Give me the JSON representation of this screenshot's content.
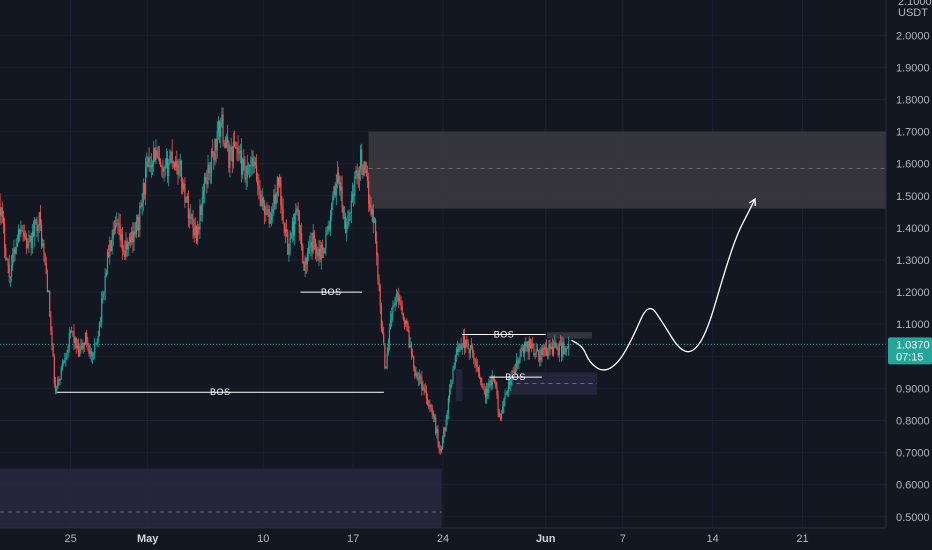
{
  "chart_data": {
    "type": "candlestick",
    "quote_currency": "USDT",
    "y_axis_top_label": "2.1000",
    "y_ticks": [
      "2.0000",
      "1.9000",
      "1.8000",
      "1.7000",
      "1.6000",
      "1.5000",
      "1.4000",
      "1.3000",
      "1.2000",
      "1.1000",
      "1.0000",
      "0.9000",
      "0.8000",
      "0.7000",
      "0.6000",
      "0.5000"
    ],
    "x_ticks": [
      {
        "label": "25",
        "bold": false,
        "day": 25
      },
      {
        "label": "May",
        "bold": true,
        "day": 31
      },
      {
        "label": "10",
        "bold": false,
        "day": 40
      },
      {
        "label": "17",
        "bold": false,
        "day": 47
      },
      {
        "label": "24",
        "bold": false,
        "day": 54
      },
      {
        "label": "Jun",
        "bold": true,
        "day": 62
      },
      {
        "label": "7",
        "bold": false,
        "day": 68
      },
      {
        "label": "14",
        "bold": false,
        "day": 75
      },
      {
        "label": "21",
        "bold": false,
        "day": 82
      }
    ],
    "day_range": [
      19.5,
      88.5
    ],
    "y_range": [
      0.465,
      2.11
    ],
    "current_price": {
      "value": "1.0370",
      "countdown": "07:15",
      "level": 1.037
    },
    "colors": {
      "up": "#26a69a",
      "down": "#ef5350",
      "background": "#131722",
      "grid": "#1c2030"
    },
    "price_path": [
      [
        19.5,
        1.5
      ],
      [
        20.3,
        1.25
      ],
      [
        21.2,
        1.42
      ],
      [
        21.8,
        1.33
      ],
      [
        22.6,
        1.44
      ],
      [
        23.3,
        1.22
      ],
      [
        23.9,
        0.88
      ],
      [
        24.6,
        1.0
      ],
      [
        25.2,
        1.08
      ],
      [
        25.7,
        1.0
      ],
      [
        26.3,
        1.06
      ],
      [
        26.8,
        0.98
      ],
      [
        27.4,
        1.12
      ],
      [
        28.0,
        1.32
      ],
      [
        28.7,
        1.4
      ],
      [
        29.3,
        1.32
      ],
      [
        29.9,
        1.38
      ],
      [
        30.4,
        1.42
      ],
      [
        31.0,
        1.58
      ],
      [
        31.6,
        1.64
      ],
      [
        32.3,
        1.55
      ],
      [
        32.9,
        1.63
      ],
      [
        33.6,
        1.58
      ],
      [
        34.3,
        1.45
      ],
      [
        34.9,
        1.38
      ],
      [
        35.6,
        1.55
      ],
      [
        36.2,
        1.63
      ],
      [
        36.8,
        1.73
      ],
      [
        37.4,
        1.62
      ],
      [
        38.0,
        1.66
      ],
      [
        38.7,
        1.55
      ],
      [
        39.3,
        1.6
      ],
      [
        40.0,
        1.48
      ],
      [
        40.6,
        1.42
      ],
      [
        41.3,
        1.55
      ],
      [
        42.0,
        1.33
      ],
      [
        42.7,
        1.45
      ],
      [
        43.3,
        1.28
      ],
      [
        44.0,
        1.36
      ],
      [
        44.6,
        1.32
      ],
      [
        45.3,
        1.42
      ],
      [
        45.9,
        1.58
      ],
      [
        46.5,
        1.38
      ],
      [
        47.1,
        1.52
      ],
      [
        47.7,
        1.62
      ],
      [
        48.3,
        1.5
      ],
      [
        48.8,
        1.4
      ],
      [
        49.2,
        1.15
      ],
      [
        49.6,
        0.96
      ],
      [
        50.0,
        1.12
      ],
      [
        50.6,
        1.2
      ],
      [
        51.3,
        1.08
      ],
      [
        51.9,
        0.96
      ],
      [
        52.6,
        0.9
      ],
      [
        53.3,
        0.82
      ],
      [
        53.9,
        0.7
      ],
      [
        54.5,
        0.85
      ],
      [
        55.0,
        1.0
      ],
      [
        55.6,
        1.05
      ],
      [
        56.2,
        1.02
      ],
      [
        56.8,
        0.96
      ],
      [
        57.4,
        0.88
      ],
      [
        58.0,
        0.93
      ],
      [
        58.6,
        0.8
      ],
      [
        59.1,
        0.9
      ],
      [
        59.7,
        0.96
      ],
      [
        60.3,
        1.02
      ],
      [
        60.9,
        1.04
      ],
      [
        61.5,
        1.0
      ],
      [
        62.1,
        1.02
      ],
      [
        62.7,
        1.03
      ],
      [
        63.3,
        1.02
      ],
      [
        63.8,
        1.037
      ]
    ],
    "zones": [
      {
        "from_day": 48.2,
        "to_day": 88.5,
        "low": 1.46,
        "high": 1.7,
        "mid": 1.585,
        "fill": "#3d3b40",
        "dashed_mid": true
      },
      {
        "from_day": 19.5,
        "to_day": 53.9,
        "low": 0.465,
        "high": 0.65,
        "mid": 0.515,
        "fill": "#2a2740",
        "dashed_mid": true
      },
      {
        "from_day": 59.1,
        "to_day": 66.0,
        "low": 0.88,
        "high": 0.95,
        "mid": 0.915,
        "fill": "#28273e",
        "dashed_mid": true
      },
      {
        "from_day": 62.1,
        "to_day": 65.6,
        "low": 1.055,
        "high": 1.075,
        "mid": null,
        "fill": "#3a3a44",
        "dashed_mid": false
      },
      {
        "from_day": 55.0,
        "to_day": 55.5,
        "low": 0.86,
        "high": 0.96,
        "mid": null,
        "fill": "#2a2740",
        "dashed_mid": false
      }
    ],
    "bos_lines": [
      {
        "label": "BOS",
        "from_day": 42.9,
        "to_day": 47.7,
        "level": 1.2
      },
      {
        "label": "BOS",
        "from_day": 23.9,
        "to_day": 49.4,
        "level": 0.888
      },
      {
        "label": "BOS",
        "from_day": 55.5,
        "to_day": 62.0,
        "level": 1.068
      },
      {
        "label": "BOS",
        "from_day": 57.6,
        "to_day": 61.7,
        "level": 0.935
      }
    ],
    "projection": [
      [
        64.0,
        1.05
      ],
      [
        64.9,
        1.03
      ],
      [
        65.4,
        0.98
      ],
      [
        66.5,
        0.95
      ],
      [
        67.7,
        0.98
      ],
      [
        68.8,
        1.06
      ],
      [
        70.0,
        1.17
      ],
      [
        71.2,
        1.1
      ],
      [
        72.4,
        1.02
      ],
      [
        73.5,
        1.01
      ],
      [
        74.6,
        1.08
      ],
      [
        75.9,
        1.26
      ],
      [
        76.9,
        1.38
      ],
      [
        77.8,
        1.45
      ],
      [
        78.3,
        1.49
      ]
    ]
  }
}
